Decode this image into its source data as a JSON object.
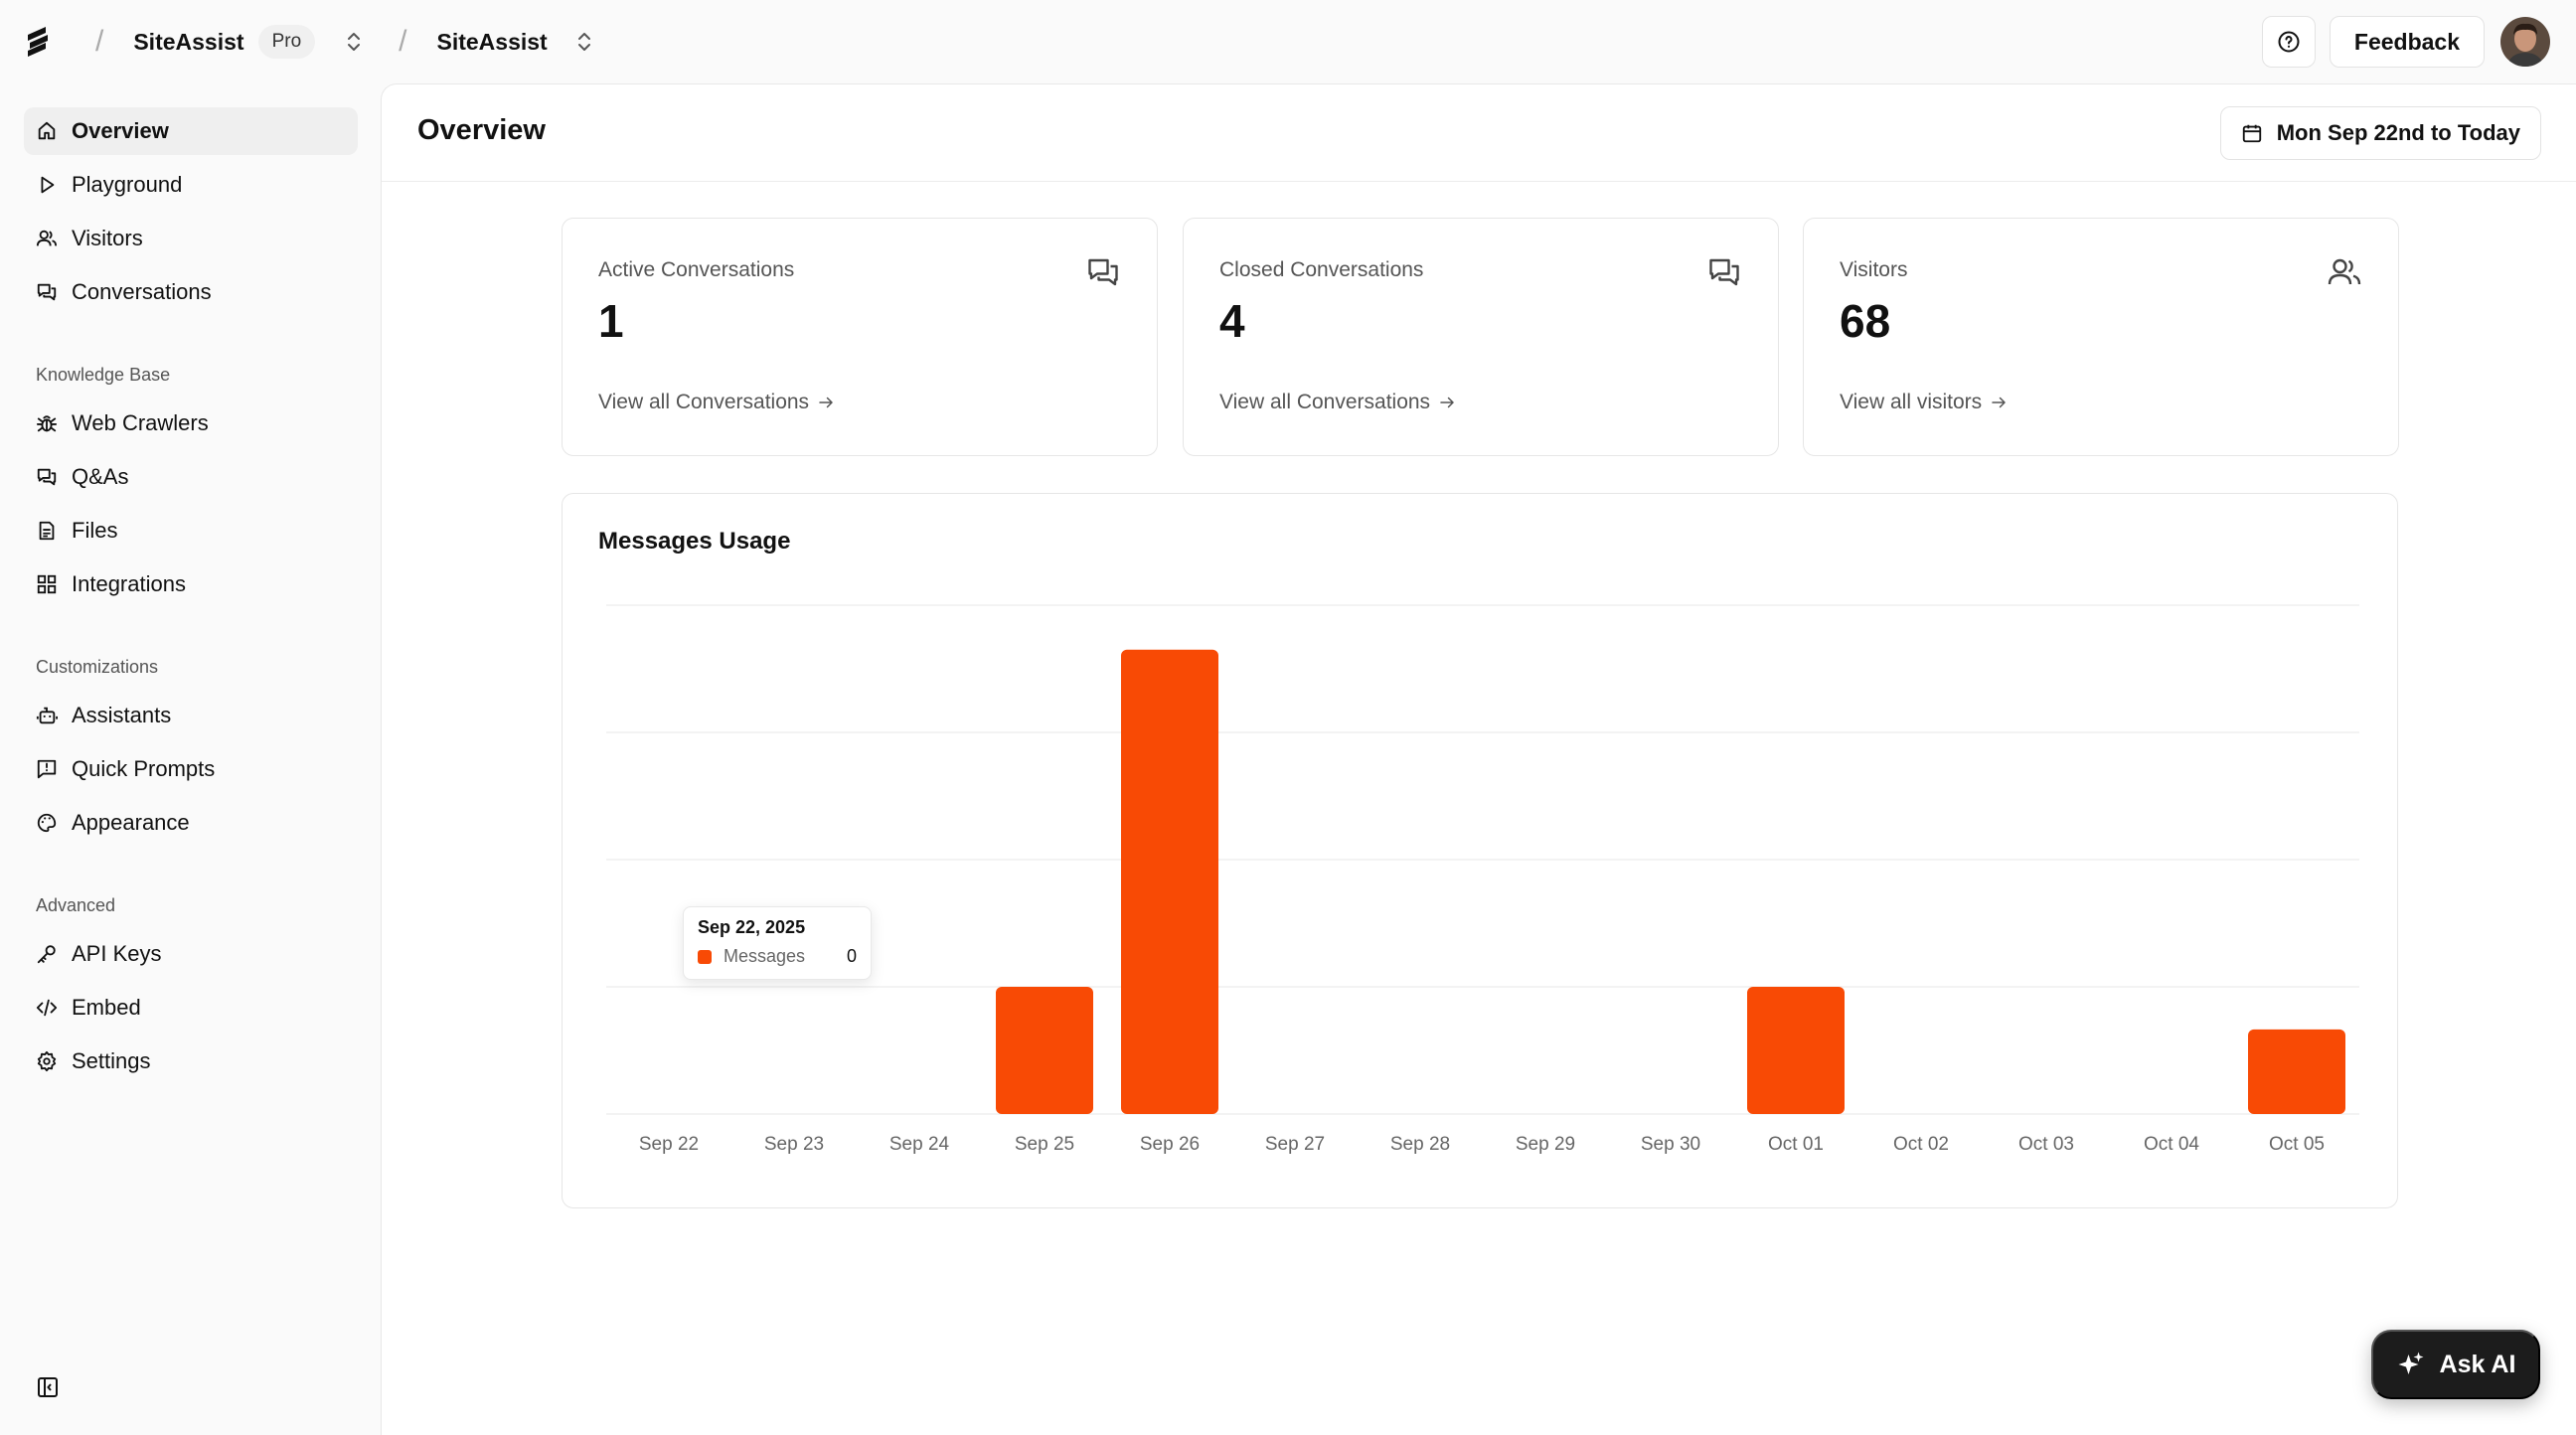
{
  "header": {
    "workspace": "SiteAssist",
    "plan_badge": "Pro",
    "project": "SiteAssist",
    "feedback_label": "Feedback",
    "help_icon": "help-circle-icon"
  },
  "sidebar": {
    "main_items": [
      {
        "label": "Overview",
        "icon": "home-icon",
        "active": true
      },
      {
        "label": "Playground",
        "icon": "play-icon"
      },
      {
        "label": "Visitors",
        "icon": "users-icon"
      },
      {
        "label": "Conversations",
        "icon": "chat-icon"
      }
    ],
    "knowledge_title": "Knowledge Base",
    "knowledge_items": [
      {
        "label": "Web Crawlers",
        "icon": "bug-icon"
      },
      {
        "label": "Q&As",
        "icon": "chat-icon"
      },
      {
        "label": "Files",
        "icon": "file-icon"
      },
      {
        "label": "Integrations",
        "icon": "grid-icon"
      }
    ],
    "custom_title": "Customizations",
    "custom_items": [
      {
        "label": "Assistants",
        "icon": "bot-icon"
      },
      {
        "label": "Quick Prompts",
        "icon": "prompt-icon"
      },
      {
        "label": "Appearance",
        "icon": "palette-icon"
      }
    ],
    "advanced_title": "Advanced",
    "advanced_items": [
      {
        "label": "API Keys",
        "icon": "key-icon"
      },
      {
        "label": "Embed",
        "icon": "code-icon"
      },
      {
        "label": "Settings",
        "icon": "gear-icon"
      }
    ]
  },
  "main": {
    "title": "Overview",
    "date_range": "Mon Sep 22nd to Today",
    "cards": [
      {
        "label": "Active Conversations",
        "value": "1",
        "link": "View all Conversations",
        "icon": "chat-icon"
      },
      {
        "label": "Closed Conversations",
        "value": "4",
        "link": "View all Conversations",
        "icon": "chat-icon"
      },
      {
        "label": "Visitors",
        "value": "68",
        "link": "View all visitors",
        "icon": "users-icon"
      }
    ]
  },
  "chart_data": {
    "type": "bar",
    "title": "Messages Usage",
    "categories": [
      "Sep 22",
      "Sep 23",
      "Sep 24",
      "Sep 25",
      "Sep 26",
      "Sep 27",
      "Sep 28",
      "Sep 29",
      "Sep 30",
      "Oct 01",
      "Oct 02",
      "Oct 03",
      "Oct 04",
      "Oct 05"
    ],
    "series": [
      {
        "name": "Messages",
        "values": [
          0,
          0,
          0,
          2,
          7.3,
          0,
          0,
          0,
          0,
          2,
          0,
          0,
          0,
          1.33
        ],
        "color": "#f84a05"
      }
    ],
    "ylim": [
      0,
      8
    ],
    "grid": true,
    "tooltip": {
      "date": "Sep 22, 2025",
      "series": "Messages",
      "value": "0"
    }
  },
  "ask_ai_label": "Ask AI"
}
